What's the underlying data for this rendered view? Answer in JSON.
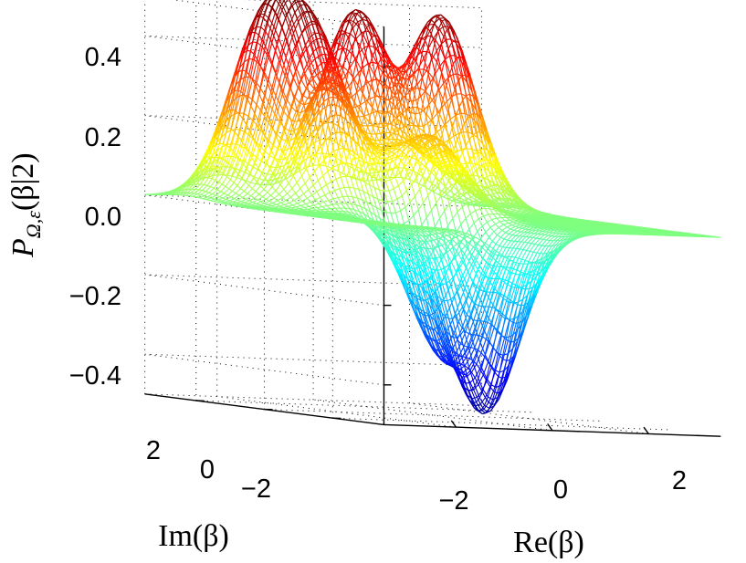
{
  "chart_data": {
    "type": "surface-mesh",
    "colormap": "jet",
    "title": "",
    "xlabel": "Re(β)",
    "ylabel": "Im(β)",
    "zlabel_main": "P",
    "zlabel_sub": "Ω,ε",
    "zlabel_args": "(β|2)",
    "xlim": [
      -3.5,
      3.5
    ],
    "ylim": [
      -3.5,
      3.5
    ],
    "zlim": [
      -0.5,
      0.5
    ],
    "x_ticks": [
      -2,
      0,
      2
    ],
    "y_ticks": [
      2,
      0,
      -2
    ],
    "z_ticks": [
      0.4,
      0.2,
      0.0,
      -0.2,
      -0.4
    ],
    "x_tick_labels": [
      "−2",
      "0",
      "2"
    ],
    "y_tick_labels": [
      "2",
      "0",
      "−2"
    ],
    "z_tick_labels": [
      "0.4",
      "0.2",
      "0.0",
      "−0.2",
      "−0.4"
    ],
    "grid": true,
    "surface_features": [
      {
        "kind": "peak",
        "re": -1.9,
        "im": 2.3,
        "value": 0.42
      },
      {
        "kind": "peak",
        "re": 0.1,
        "im": 2.4,
        "value": 0.48
      },
      {
        "kind": "peak",
        "re": 1.8,
        "im": 2.3,
        "value": 0.48
      },
      {
        "kind": "peak",
        "re": -1.5,
        "im": 1.3,
        "value": 0.38
      },
      {
        "kind": "peak",
        "re": 0.3,
        "im": 0.5,
        "value": 0.2
      },
      {
        "kind": "trough",
        "re": -0.6,
        "im": -2.4,
        "value": -0.45
      },
      {
        "kind": "trough",
        "re": -0.5,
        "im": -1.0,
        "value": -0.32
      }
    ]
  }
}
